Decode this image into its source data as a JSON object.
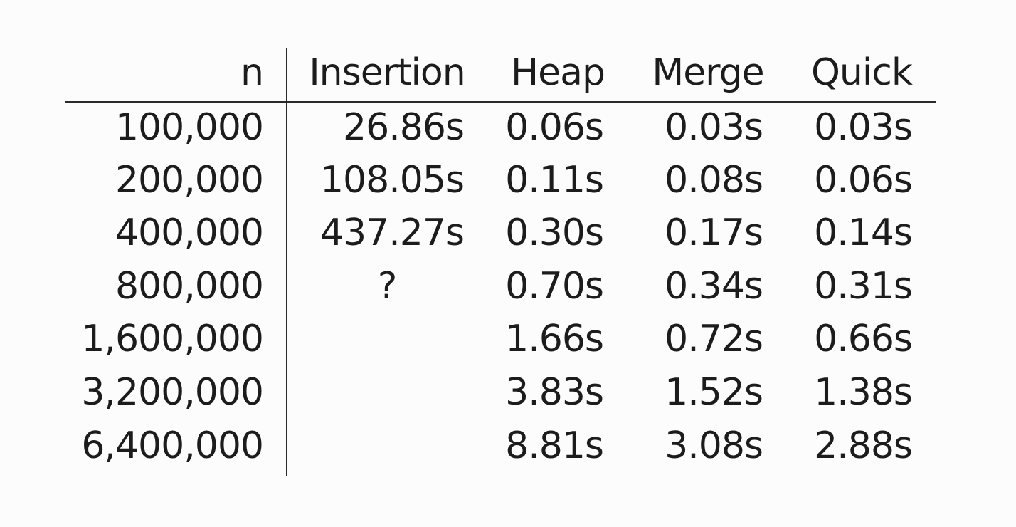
{
  "table": {
    "headers": {
      "n": "n",
      "insertion": "Insertion",
      "heap": "Heap",
      "merge": "Merge",
      "quick": "Quick"
    },
    "rows": [
      {
        "n": "100,000",
        "insertion": "26.86s",
        "heap": "0.06s",
        "merge": "0.03s",
        "quick": "0.03s"
      },
      {
        "n": "200,000",
        "insertion": "108.05s",
        "heap": "0.11s",
        "merge": "0.08s",
        "quick": "0.06s"
      },
      {
        "n": "400,000",
        "insertion": "437.27s",
        "heap": "0.30s",
        "merge": "0.17s",
        "quick": "0.14s"
      },
      {
        "n": "800,000",
        "insertion": "?",
        "heap": "0.70s",
        "merge": "0.34s",
        "quick": "0.31s"
      },
      {
        "n": "1,600,000",
        "insertion": "",
        "heap": "1.66s",
        "merge": "0.72s",
        "quick": "0.66s"
      },
      {
        "n": "3,200,000",
        "insertion": "",
        "heap": "3.83s",
        "merge": "1.52s",
        "quick": "1.38s"
      },
      {
        "n": "6,400,000",
        "insertion": "",
        "heap": "8.81s",
        "merge": "3.08s",
        "quick": "2.88s"
      }
    ]
  }
}
